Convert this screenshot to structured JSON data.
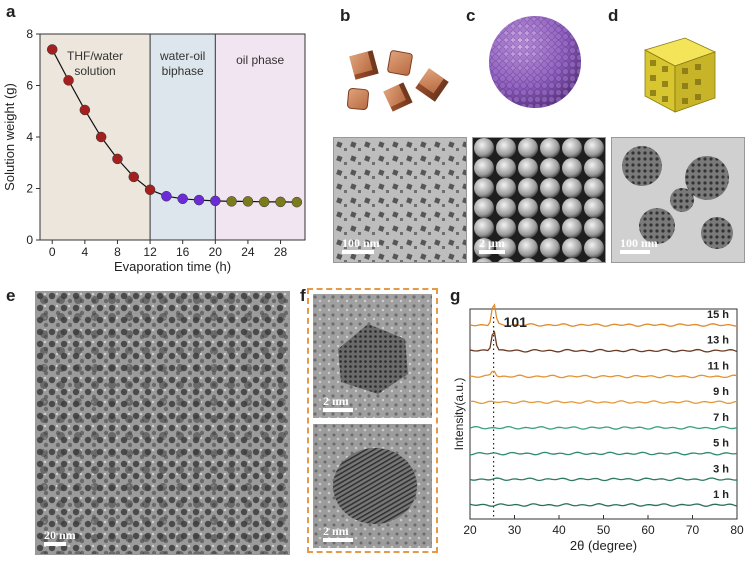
{
  "panel_labels": {
    "a": "a",
    "b": "b",
    "c": "c",
    "d": "d",
    "e": "e",
    "f": "f",
    "g": "g"
  },
  "scale_bars": {
    "b": "100 nm",
    "c": "2 μm",
    "d": "100 nm",
    "e": "20 nm",
    "f_top": "2 nm",
    "f_bottom": "2 nm"
  },
  "colors": {
    "stage1_bg": "#ede6dd",
    "stage2_bg": "#dde6ec",
    "stage3_bg": "#f0e5f1",
    "dots_stage1": "#a3201f",
    "dots_stage2": "#6b2bd6",
    "dots_stage3": "#7b7a1d",
    "f_border": "#e59a4a"
  },
  "chart_data": [
    {
      "type": "line",
      "panel": "a",
      "title": "",
      "xlabel": "Evaporation time (h)",
      "ylabel": "Solution weight (g)",
      "xlim": [
        -1.5,
        31
      ],
      "ylim": [
        0,
        8
      ],
      "xticks": [
        "0",
        "4",
        "8",
        "12",
        "16",
        "20",
        "24",
        "28"
      ],
      "yticks": [
        "0",
        "2",
        "4",
        "6",
        "8"
      ],
      "regions": [
        {
          "label": "THF/water\nsolution",
          "x": [
            -1.5,
            12
          ]
        },
        {
          "label": "water-oil\nbiphase",
          "x": [
            12,
            20
          ]
        },
        {
          "label": "oil phase",
          "x": [
            20,
            31
          ]
        }
      ],
      "series": [
        {
          "x": [
            0,
            2,
            4,
            6,
            8,
            10,
            12,
            14,
            16,
            18,
            20,
            22,
            24,
            26,
            28,
            30
          ],
          "values": [
            7.4,
            6.2,
            5.05,
            4.0,
            3.15,
            2.45,
            1.95,
            1.7,
            1.6,
            1.55,
            1.52,
            1.5,
            1.5,
            1.48,
            1.48,
            1.47
          ]
        }
      ]
    },
    {
      "type": "line",
      "panel": "g",
      "title": "",
      "xlabel": "2θ (degree)",
      "ylabel": "Intensity(a.u.)",
      "xlim": [
        20,
        80
      ],
      "xticks": [
        "20",
        "30",
        "40",
        "50",
        "60",
        "70",
        "80"
      ],
      "annotations": [
        "101"
      ],
      "series": [
        {
          "name": "1 h",
          "color": "#2a6f5e",
          "peak": 0
        },
        {
          "name": "3 h",
          "color": "#2e7a66",
          "peak": 0
        },
        {
          "name": "5 h",
          "color": "#2f8a73",
          "peak": 0
        },
        {
          "name": "7 h",
          "color": "#3aa083",
          "peak": 0
        },
        {
          "name": "9 h",
          "color": "#e59a3a",
          "peak": 0
        },
        {
          "name": "11 h",
          "color": "#e39434",
          "peak": 0.3
        },
        {
          "name": "13 h",
          "color": "#6b3a22",
          "peak": 1
        },
        {
          "name": "15 h",
          "color": "#e08a2c",
          "peak": 1
        }
      ]
    }
  ]
}
